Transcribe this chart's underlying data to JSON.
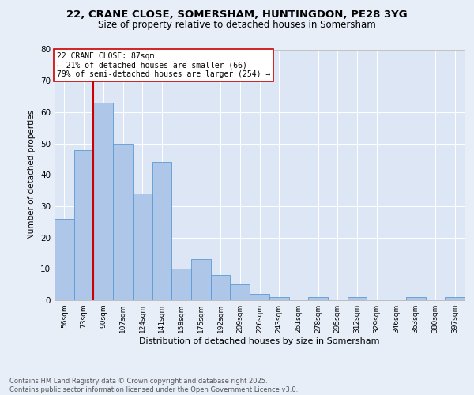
{
  "title1": "22, CRANE CLOSE, SOMERSHAM, HUNTINGDON, PE28 3YG",
  "title2": "Size of property relative to detached houses in Somersham",
  "xlabel": "Distribution of detached houses by size in Somersham",
  "ylabel": "Number of detached properties",
  "bin_labels": [
    "56sqm",
    "73sqm",
    "90sqm",
    "107sqm",
    "124sqm",
    "141sqm",
    "158sqm",
    "175sqm",
    "192sqm",
    "209sqm",
    "226sqm",
    "243sqm",
    "261sqm",
    "278sqm",
    "295sqm",
    "312sqm",
    "329sqm",
    "346sqm",
    "363sqm",
    "380sqm",
    "397sqm"
  ],
  "bar_values": [
    26,
    48,
    63,
    50,
    34,
    44,
    10,
    13,
    8,
    5,
    2,
    1,
    0,
    1,
    0,
    1,
    0,
    0,
    1,
    0,
    1
  ],
  "bar_color": "#aec6e8",
  "bar_edge_color": "#5b9bd5",
  "vline_x": 2,
  "vline_color": "#cc0000",
  "annotation_text": "22 CRANE CLOSE: 87sqm\n← 21% of detached houses are smaller (66)\n79% of semi-detached houses are larger (254) →",
  "annotation_box_color": "#ffffff",
  "annotation_box_edge": "#cc0000",
  "ylim": [
    0,
    80
  ],
  "yticks": [
    0,
    10,
    20,
    30,
    40,
    50,
    60,
    70,
    80
  ],
  "footer_text": "Contains HM Land Registry data © Crown copyright and database right 2025.\nContains public sector information licensed under the Open Government Licence v3.0.",
  "bg_color": "#e8eef8",
  "plot_bg_color": "#dce6f4"
}
